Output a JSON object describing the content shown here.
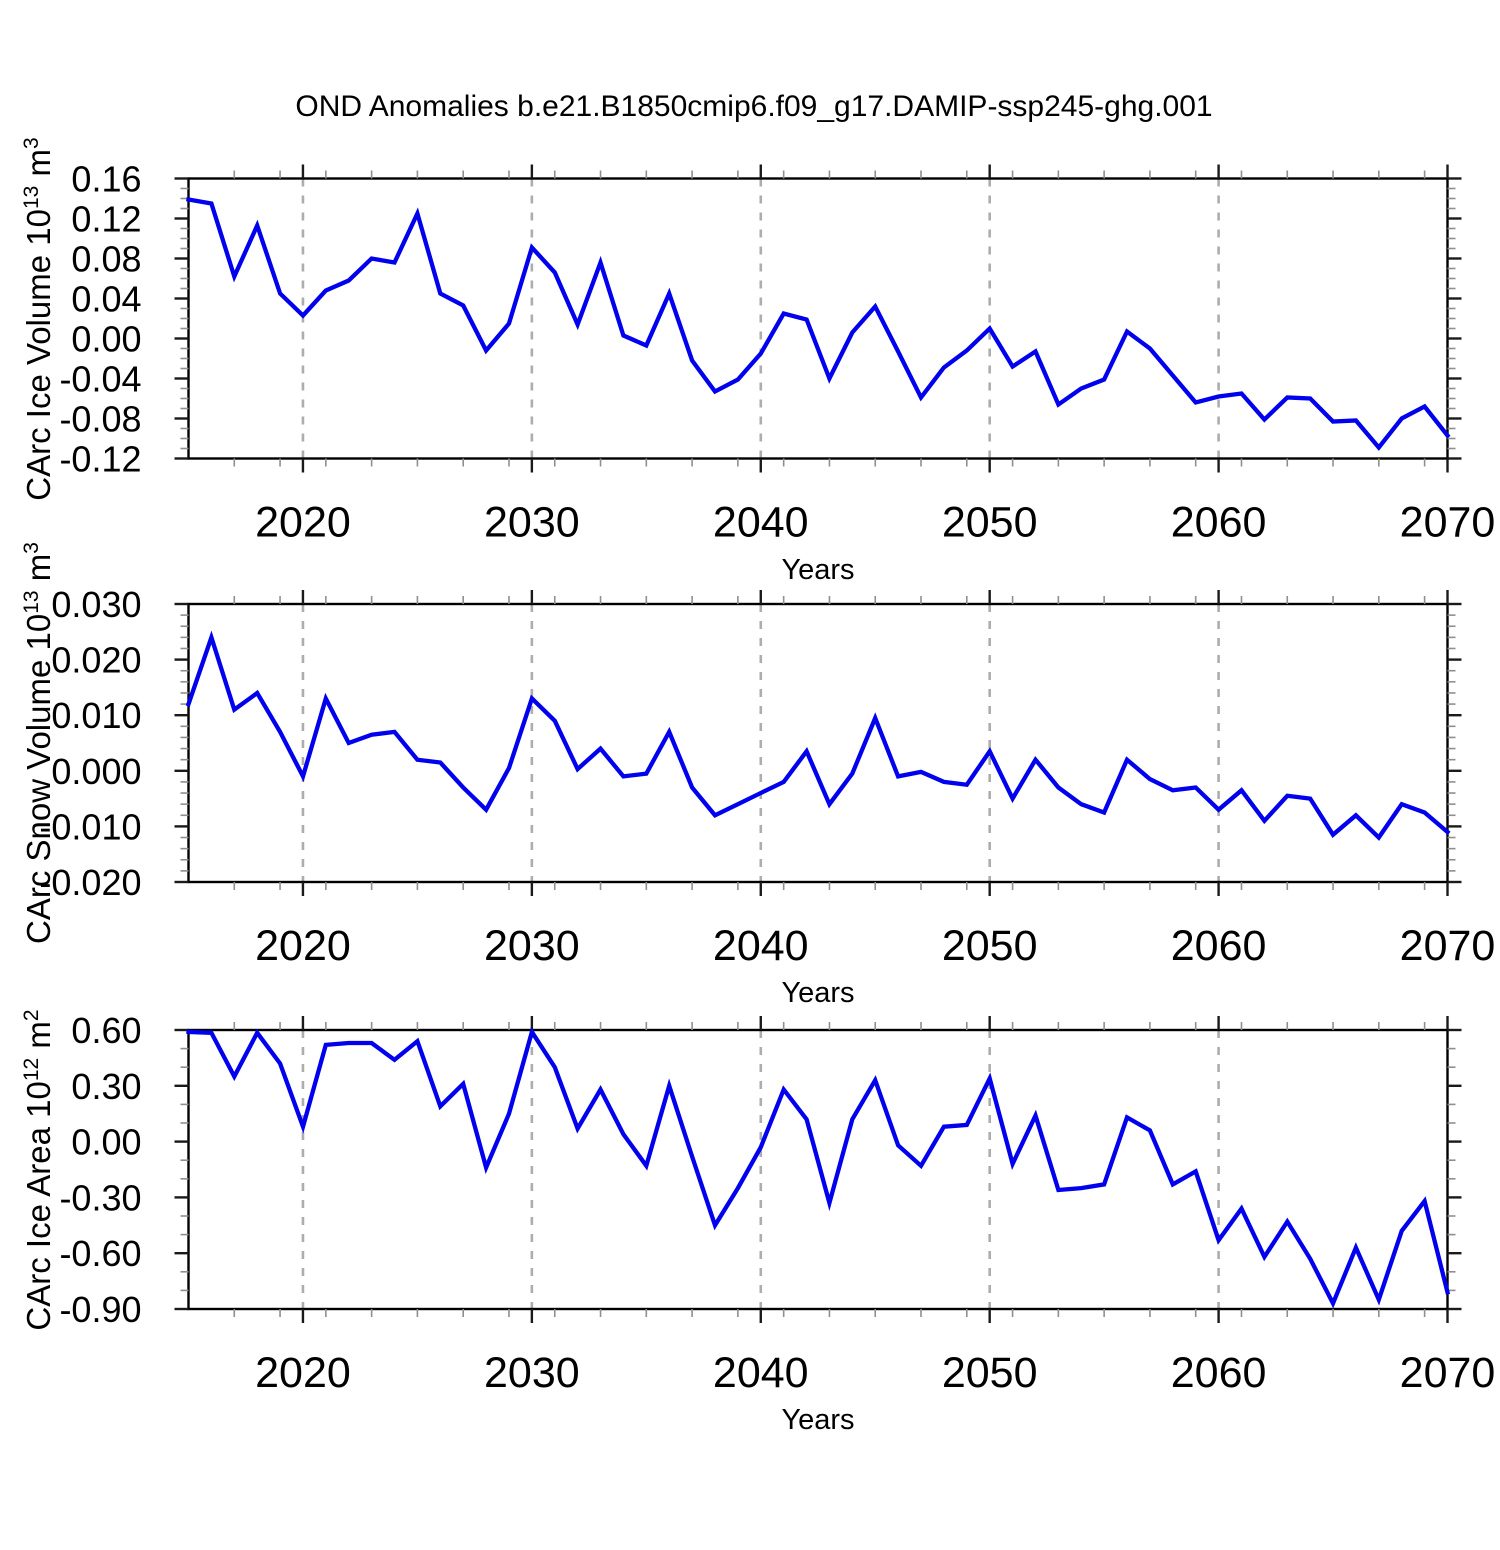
{
  "chart_data": {
    "type": "line",
    "title": "OND Anomalies b.e21.B1850cmip6.f09_g17.DAMIP-ssp245-ghg.001",
    "xlabel": "Years",
    "xlim": [
      2015,
      2070
    ],
    "x_minor_step": 2,
    "x_gridlines": [
      2020,
      2030,
      2040,
      2050,
      2060
    ],
    "x_major_ticks": [
      {
        "value": 2020,
        "label": "2020"
      },
      {
        "value": 2030,
        "label": "2030"
      },
      {
        "value": 2040,
        "label": "2040"
      },
      {
        "value": 2050,
        "label": "2050"
      },
      {
        "value": 2060,
        "label": "2060"
      },
      {
        "value": 2070,
        "label": "2070"
      }
    ],
    "line_color": "#0101EE",
    "grid_color": "#ADADAD",
    "frame_color": "#000000",
    "legend": "none",
    "grid": "vertical-dashed-only",
    "x": [
      2015,
      2016,
      2017,
      2018,
      2019,
      2020,
      2021,
      2022,
      2023,
      2024,
      2025,
      2026,
      2027,
      2028,
      2029,
      2030,
      2031,
      2032,
      2033,
      2034,
      2035,
      2036,
      2037,
      2038,
      2039,
      2040,
      2041,
      2042,
      2043,
      2044,
      2045,
      2046,
      2047,
      2048,
      2049,
      2050,
      2051,
      2052,
      2053,
      2054,
      2055,
      2056,
      2057,
      2058,
      2059,
      2060,
      2061,
      2062,
      2063,
      2064,
      2065,
      2066,
      2067,
      2068,
      2069,
      2070
    ],
    "series": [
      {
        "name": "CArc Ice Volume 10^13 m^3",
        "ylabel_segments": [
          {
            "text": "CArc Ice Volume 10"
          },
          {
            "text": "13",
            "sup": true
          },
          {
            "text": " m"
          },
          {
            "text": "3",
            "sup": true
          }
        ],
        "ylim": [
          -0.12,
          0.16
        ],
        "y_minor_step": 0.01,
        "y_major_ticks": [
          {
            "value": 0.16,
            "label": "0.16"
          },
          {
            "value": 0.12,
            "label": "0.12"
          },
          {
            "value": 0.08,
            "label": "0.08"
          },
          {
            "value": 0.04,
            "label": "0.04"
          },
          {
            "value": 0.0,
            "label": "0.00"
          },
          {
            "value": -0.04,
            "label": "-0.04"
          },
          {
            "value": -0.08,
            "label": "-0.08"
          },
          {
            "value": -0.12,
            "label": "-0.12"
          }
        ],
        "values": [
          0.139,
          0.135,
          0.062,
          0.113,
          0.045,
          0.023,
          0.048,
          0.058,
          0.08,
          0.076,
          0.125,
          0.045,
          0.033,
          -0.012,
          0.015,
          0.091,
          0.066,
          0.014,
          0.076,
          0.003,
          -0.007,
          0.045,
          -0.022,
          -0.053,
          -0.041,
          -0.015,
          0.025,
          0.019,
          -0.04,
          0.006,
          0.032,
          -0.013,
          -0.059,
          -0.029,
          -0.012,
          0.01,
          -0.028,
          -0.013,
          -0.066,
          -0.05,
          -0.041,
          0.007,
          -0.01,
          -0.037,
          -0.064,
          -0.058,
          -0.055,
          -0.081,
          -0.059,
          -0.06,
          -0.083,
          -0.082,
          -0.109,
          -0.08,
          -0.068,
          -0.097
        ]
      },
      {
        "name": "CArc Snow Volume 10^13 m^3",
        "ylabel_segments": [
          {
            "text": "CArc Snow Volume 10"
          },
          {
            "text": "13",
            "sup": true
          },
          {
            "text": " m"
          },
          {
            "text": "3",
            "sup": true
          }
        ],
        "ylim": [
          -0.02,
          0.03
        ],
        "y_minor_step": 0.002,
        "y_major_ticks": [
          {
            "value": 0.03,
            "label": "0.030"
          },
          {
            "value": 0.02,
            "label": "0.020"
          },
          {
            "value": 0.01,
            "label": "0.010"
          },
          {
            "value": 0.0,
            "label": "0.000"
          },
          {
            "value": -0.01,
            "label": "-0.010"
          },
          {
            "value": -0.02,
            "label": "-0.020"
          }
        ],
        "values": [
          0.012,
          0.024,
          0.011,
          0.014,
          0.007,
          -0.001,
          0.013,
          0.005,
          0.0065,
          0.007,
          0.002,
          0.0015,
          -0.003,
          -0.007,
          0.0005,
          0.013,
          0.009,
          0.0003,
          0.004,
          -0.001,
          -0.0005,
          0.007,
          -0.003,
          -0.008,
          -0.006,
          -0.004,
          -0.002,
          0.0035,
          -0.006,
          -0.0005,
          0.0095,
          -0.001,
          -0.0002,
          -0.002,
          -0.0025,
          0.0035,
          -0.005,
          0.002,
          -0.003,
          -0.006,
          -0.0075,
          0.002,
          -0.0015,
          -0.0035,
          -0.003,
          -0.007,
          -0.0035,
          -0.009,
          -0.0045,
          -0.005,
          -0.0115,
          -0.008,
          -0.012,
          -0.006,
          -0.0075,
          -0.011
        ]
      },
      {
        "name": "CArc Ice Area 10^12 m^2",
        "ylabel_segments": [
          {
            "text": "CArc Ice Area 10"
          },
          {
            "text": "12",
            "sup": true
          },
          {
            "text": " m"
          },
          {
            "text": "2",
            "sup": true
          }
        ],
        "ylim": [
          -0.9,
          0.6
        ],
        "y_minor_step": 0.1,
        "y_major_ticks": [
          {
            "value": 0.6,
            "label": "0.60"
          },
          {
            "value": 0.3,
            "label": "0.30"
          },
          {
            "value": 0.0,
            "label": "0.00"
          },
          {
            "value": -0.3,
            "label": "-0.30"
          },
          {
            "value": -0.6,
            "label": "-0.60"
          },
          {
            "value": -0.9,
            "label": "-0.90"
          }
        ],
        "values": [
          0.59,
          0.585,
          0.35,
          0.585,
          0.42,
          0.08,
          0.52,
          0.53,
          0.53,
          0.44,
          0.54,
          0.19,
          0.31,
          -0.14,
          0.15,
          0.59,
          0.4,
          0.07,
          0.28,
          0.04,
          -0.13,
          0.3,
          -0.08,
          -0.45,
          -0.25,
          -0.03,
          0.28,
          0.12,
          -0.33,
          0.12,
          0.33,
          -0.02,
          -0.13,
          0.08,
          0.09,
          0.34,
          -0.12,
          0.14,
          -0.26,
          -0.25,
          -0.23,
          0.13,
          0.06,
          -0.23,
          -0.16,
          -0.53,
          -0.36,
          -0.62,
          -0.43,
          -0.63,
          -0.87,
          -0.57,
          -0.85,
          -0.48,
          -0.32,
          -0.81
        ]
      }
    ]
  }
}
